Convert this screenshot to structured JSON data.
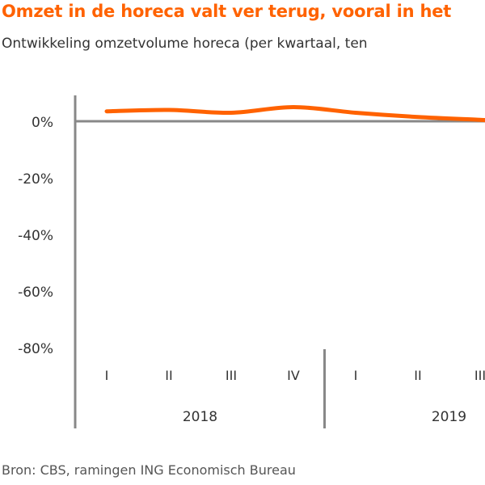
{
  "title": "Omzet in de horeca valt ver terug, vooral in het",
  "subtitle": "Ontwikkeling omzetvolume horeca (per kwartaal, ten",
  "source": "Bron: CBS, ramingen ING Economisch Bureau",
  "colors": {
    "line": "#ff6200",
    "axis": "#888888",
    "title": "#ff6200"
  },
  "chart_data": {
    "type": "line",
    "title": "Omzet in de horeca valt ver terug, vooral in het",
    "subtitle": "Ontwikkeling omzetvolume horeca (per kwartaal, ten",
    "xlabel": "",
    "ylabel": "",
    "ylim": [
      -90,
      10
    ],
    "y_ticks": [
      0,
      -20,
      -40,
      -60,
      -80
    ],
    "y_tick_labels": [
      "0%",
      "-20%",
      "-40%",
      "-60%",
      "-80%"
    ],
    "categories": [
      "I",
      "II",
      "III",
      "IV",
      "I",
      "II",
      "III"
    ],
    "years": [
      {
        "label": "2018",
        "quarters": 4
      },
      {
        "label": "2019",
        "quarters": 3
      }
    ],
    "series": [
      {
        "values": [
          3.5,
          4.0,
          3.0,
          5.0,
          3.0,
          1.5,
          0.5
        ]
      }
    ],
    "grid": false
  }
}
